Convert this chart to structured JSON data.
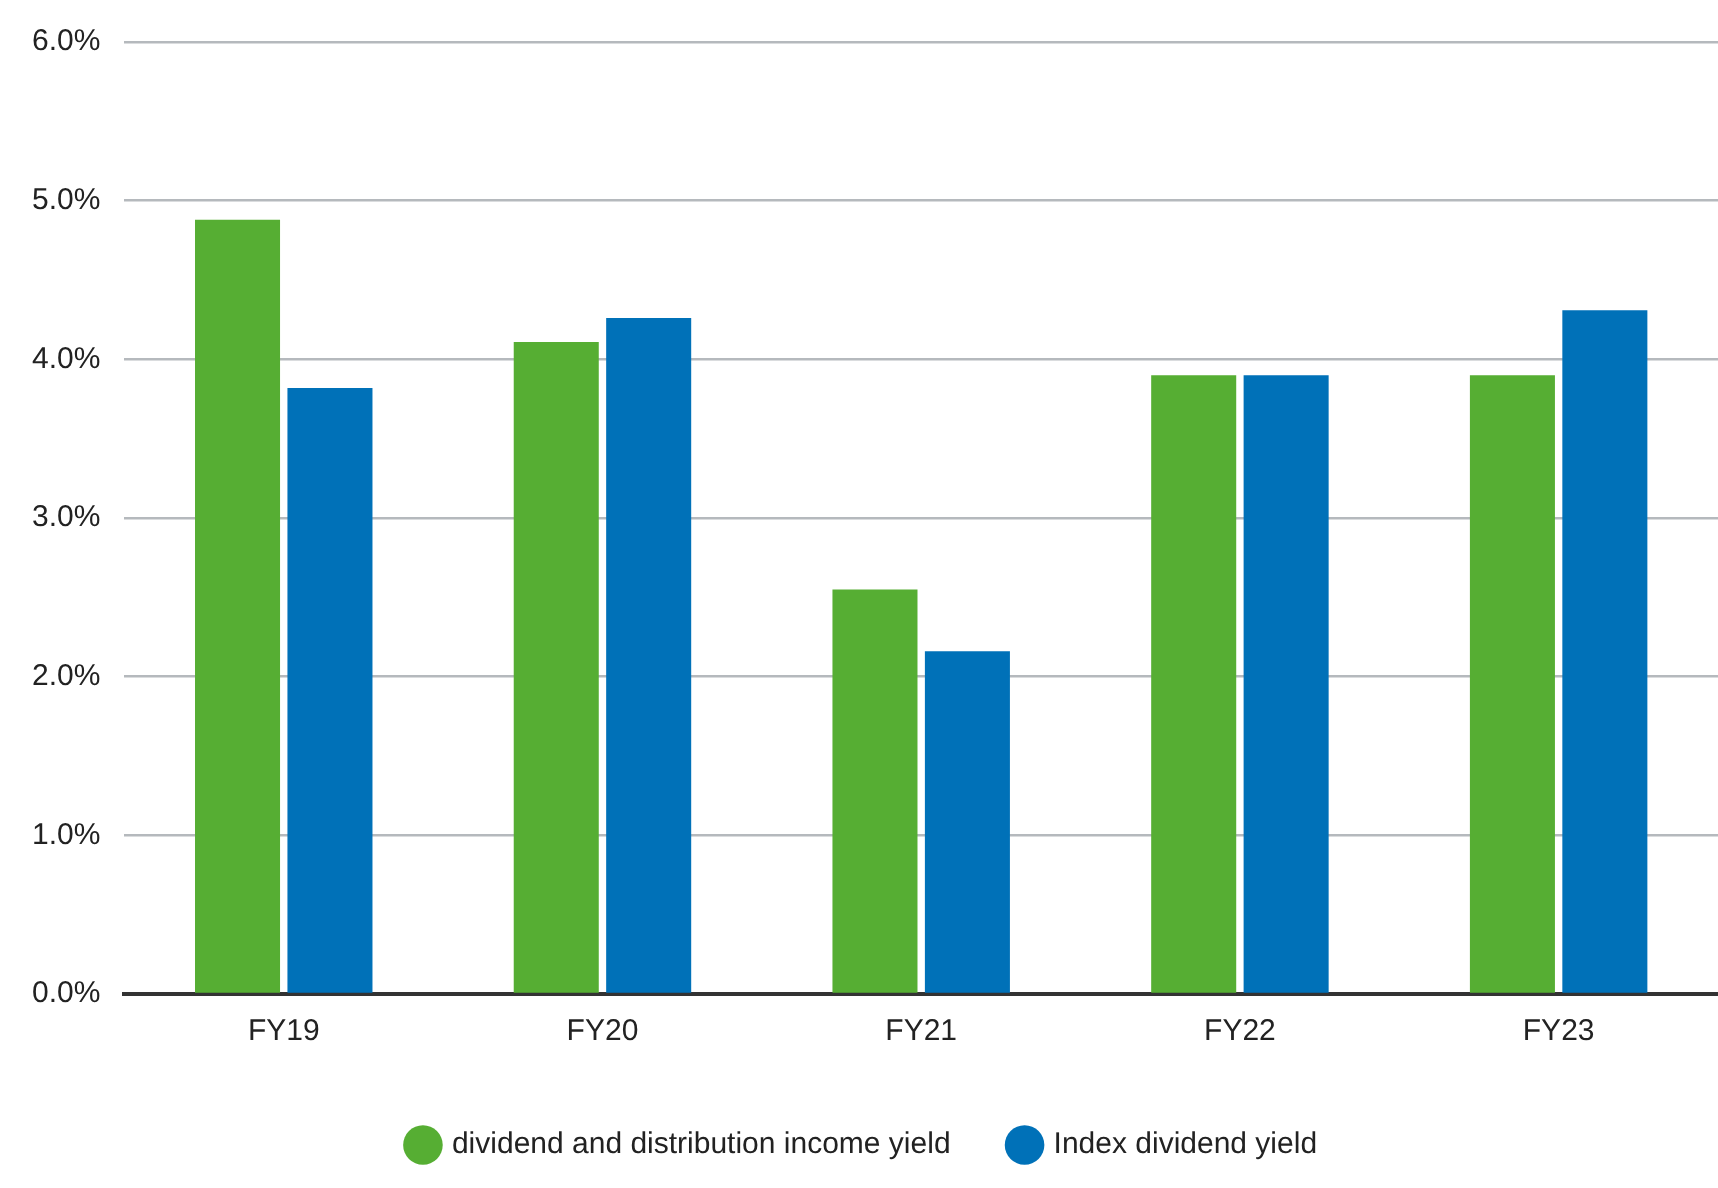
{
  "chart_data": {
    "type": "bar",
    "categories": [
      "FY19",
      "FY20",
      "FY21",
      "FY22",
      "FY23"
    ],
    "series": [
      {
        "name": "dividend and distribution income yield",
        "color": "#56ae33",
        "values": [
          4.88,
          4.11,
          2.55,
          3.9,
          3.9
        ]
      },
      {
        "name": "Index dividend yield",
        "color": "#0071b8",
        "values": [
          3.82,
          4.26,
          2.16,
          3.9,
          4.31
        ]
      }
    ],
    "ylim": [
      0,
      6
    ],
    "yticks": [
      {
        "value": 0,
        "label": "0.0%"
      },
      {
        "value": 1,
        "label": "1.0%"
      },
      {
        "value": 2,
        "label": "2.0%"
      },
      {
        "value": 3,
        "label": "3.0%"
      },
      {
        "value": 4,
        "label": "4.0%"
      },
      {
        "value": 5,
        "label": "5.0%"
      },
      {
        "value": 6,
        "label": "6.0%"
      }
    ],
    "grid": "y",
    "legend": "bottom"
  }
}
